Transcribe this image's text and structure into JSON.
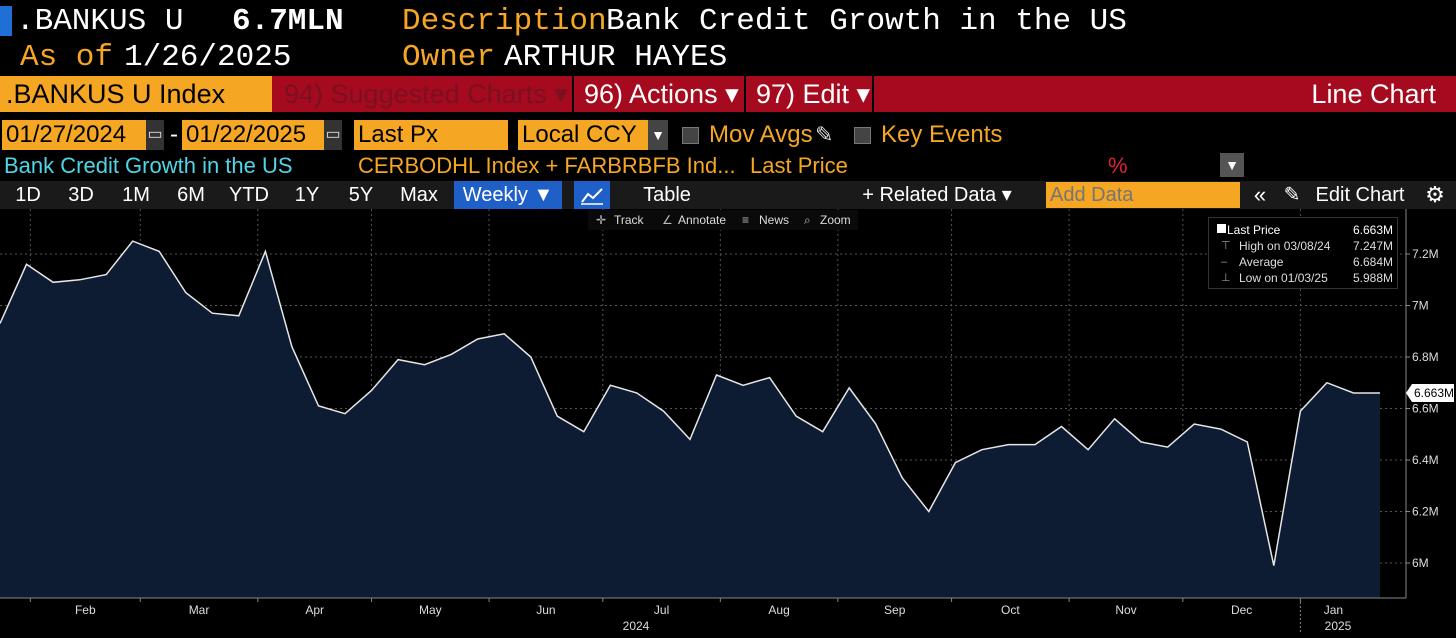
{
  "header": {
    "ticker": ".BANKUS U",
    "value": "6.7MLN",
    "desc_label": "Description",
    "desc_value": "Bank Credit Growth in the US",
    "asof_label": "As of",
    "asof_value": "1/26/2025",
    "owner_label": "Owner",
    "owner_value": "ARTHUR HAYES"
  },
  "menu": {
    "index_name": ".BANKUS U Index",
    "suggested": "94) Suggested Charts ▾",
    "actions": "96) Actions ▾",
    "edit": "97) Edit ▾",
    "chart_type": "Line Chart"
  },
  "controls": {
    "date_from": "01/27/2024",
    "dash": "-",
    "date_to": "01/22/2025",
    "price_field": "Last Px",
    "currency": "Local CCY",
    "mov_avgs": "Mov Avgs",
    "key_events": "Key Events"
  },
  "legend": {
    "series": "Bank Credit Growth in the US",
    "tickers": "CERBODHL Index + FARBRBFB Ind...",
    "field": "Last Price",
    "pct": "%"
  },
  "toolbar": {
    "periods": [
      "1D",
      "3D",
      "1M",
      "6M",
      "YTD",
      "1Y",
      "5Y",
      "Max"
    ],
    "frequency": "Weekly ▼",
    "table": "Table",
    "related": "+ Related Data ▾",
    "add_data_placeholder": "Add Data",
    "collapse": "«",
    "edit_chart": "Edit Chart",
    "settings": "⚙"
  },
  "subtools": {
    "track": "Track",
    "annotate": "Annotate",
    "news": "News",
    "zoom": "Zoom"
  },
  "info": {
    "last_label": "Last Price",
    "last_value": "6.663M",
    "high_label": "High on 03/08/24",
    "high_value": "7.247M",
    "avg_label": "Average",
    "avg_value": "6.684M",
    "low_label": "Low on 01/03/25",
    "low_value": "5.988M"
  },
  "colors": {
    "accent": "#f5a623",
    "menu_bar": "#a50a1e",
    "area_fill": "#0d1b33",
    "line": "#e6e6e6"
  },
  "chart_data": {
    "type": "area",
    "series_name": "Bank Credit Growth in the US",
    "x": [
      "2024-01-24",
      "2024-01-31",
      "2024-02-07",
      "2024-02-14",
      "2024-02-21",
      "2024-02-28",
      "2024-03-06",
      "2024-03-13",
      "2024-03-20",
      "2024-03-27",
      "2024-04-03",
      "2024-04-10",
      "2024-04-17",
      "2024-04-24",
      "2024-05-01",
      "2024-05-08",
      "2024-05-15",
      "2024-05-22",
      "2024-05-29",
      "2024-06-05",
      "2024-06-12",
      "2024-06-19",
      "2024-06-26",
      "2024-07-03",
      "2024-07-10",
      "2024-07-17",
      "2024-07-24",
      "2024-07-31",
      "2024-08-07",
      "2024-08-14",
      "2024-08-21",
      "2024-08-28",
      "2024-09-04",
      "2024-09-11",
      "2024-09-18",
      "2024-09-25",
      "2024-10-02",
      "2024-10-09",
      "2024-10-16",
      "2024-10-23",
      "2024-10-30",
      "2024-11-06",
      "2024-11-13",
      "2024-11-20",
      "2024-11-27",
      "2024-12-04",
      "2024-12-11",
      "2024-12-18",
      "2024-12-25",
      "2025-01-01",
      "2025-01-08",
      "2025-01-15",
      "2025-01-22"
    ],
    "values": [
      6.93,
      7.16,
      7.09,
      7.1,
      7.12,
      7.25,
      7.21,
      7.05,
      6.97,
      6.96,
      7.21,
      6.84,
      6.61,
      6.58,
      6.67,
      6.79,
      6.77,
      6.81,
      6.87,
      6.89,
      6.8,
      6.57,
      6.51,
      6.69,
      6.66,
      6.59,
      6.48,
      6.73,
      6.69,
      6.72,
      6.57,
      6.51,
      6.68,
      6.54,
      6.33,
      6.2,
      6.39,
      6.44,
      6.46,
      6.46,
      6.53,
      6.44,
      6.56,
      6.47,
      6.45,
      6.54,
      6.52,
      6.47,
      5.99,
      6.59,
      6.7,
      6.66,
      6.66
    ],
    "unit": "M",
    "y_ticks": [
      "6M",
      "6.2M",
      "6.4M",
      "6.6M",
      "6.8M",
      "7M",
      "7.2M"
    ],
    "y_tick_values": [
      6.0,
      6.2,
      6.4,
      6.6,
      6.8,
      7.0,
      7.2
    ],
    "ylim": [
      5.9,
      7.3
    ],
    "x_tick_labels": [
      "Feb",
      "Mar",
      "Apr",
      "May",
      "Jun",
      "Jul",
      "Aug",
      "Sep",
      "Oct",
      "Nov",
      "Dec",
      "Jan"
    ],
    "x_tick_dates": [
      "2024-02-01",
      "2024-03-01",
      "2024-04-01",
      "2024-05-01",
      "2024-06-01",
      "2024-07-01",
      "2024-08-01",
      "2024-09-01",
      "2024-10-01",
      "2024-11-01",
      "2024-12-01",
      "2025-01-01"
    ],
    "year_labels": [
      "2024",
      "2025"
    ],
    "last_label": "6.663M",
    "grid": true
  }
}
